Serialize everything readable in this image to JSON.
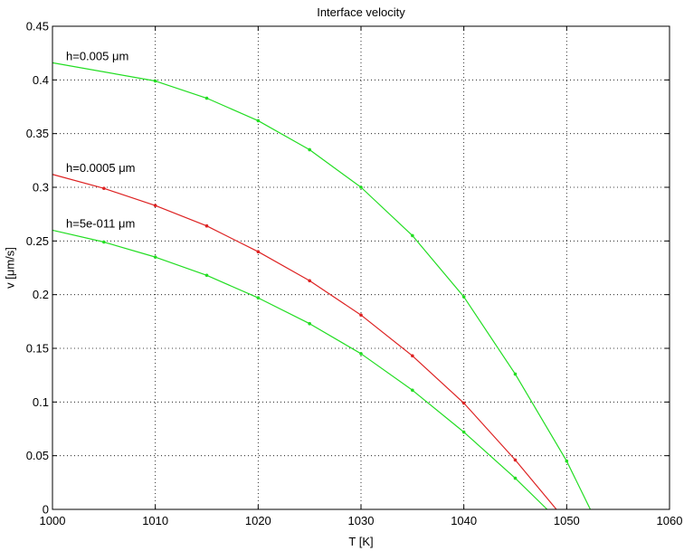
{
  "chart_data": {
    "type": "line",
    "title": "Interface velocity",
    "xlabel": "T [K]",
    "ylabel": "v [μm/s]",
    "xlim": [
      1000,
      1060
    ],
    "ylim": [
      0,
      0.45
    ],
    "xticks": [
      1000,
      1010,
      1020,
      1030,
      1040,
      1050,
      1060
    ],
    "yticks": [
      0,
      0.05,
      0.1,
      0.15,
      0.2,
      0.25,
      0.3,
      0.35,
      0.4,
      0.45
    ],
    "xtick_labels": [
      "1000",
      "1010",
      "1020",
      "1030",
      "1040",
      "1050",
      "1060"
    ],
    "ytick_labels": [
      "0",
      "0.05",
      "0.1",
      "0.15",
      "0.2",
      "0.25",
      "0.3",
      "0.35",
      "0.4",
      "0.45"
    ],
    "grid": true,
    "series": [
      {
        "annotation": "h=0.005 μm",
        "color": "#22dd22",
        "x": [
          1000,
          1010,
          1015,
          1020,
          1025,
          1030,
          1035,
          1040,
          1045,
          1050,
          1052.3
        ],
        "y": [
          0.416,
          0.399,
          0.383,
          0.362,
          0.335,
          0.3,
          0.255,
          0.198,
          0.126,
          0.045,
          0
        ],
        "markers": [
          false,
          true,
          true,
          true,
          true,
          true,
          true,
          true,
          true,
          true,
          false
        ]
      },
      {
        "annotation": "h=0.0005 μm",
        "color": "#dd2222",
        "x": [
          1000,
          1005,
          1010,
          1015,
          1020,
          1025,
          1030,
          1035,
          1040,
          1045,
          1049
        ],
        "y": [
          0.312,
          0.299,
          0.283,
          0.264,
          0.24,
          0.213,
          0.181,
          0.143,
          0.099,
          0.046,
          0
        ],
        "markers": [
          false,
          true,
          true,
          true,
          true,
          true,
          true,
          true,
          true,
          true,
          false
        ]
      },
      {
        "annotation": "h=5e-011 μm",
        "color": "#22dd22",
        "x": [
          1000,
          1005,
          1010,
          1015,
          1020,
          1025,
          1030,
          1035,
          1040,
          1045,
          1048.1
        ],
        "y": [
          0.26,
          0.249,
          0.235,
          0.218,
          0.197,
          0.173,
          0.145,
          0.111,
          0.072,
          0.029,
          0
        ],
        "markers": [
          false,
          true,
          true,
          true,
          true,
          true,
          true,
          true,
          true,
          true,
          false
        ]
      }
    ]
  }
}
